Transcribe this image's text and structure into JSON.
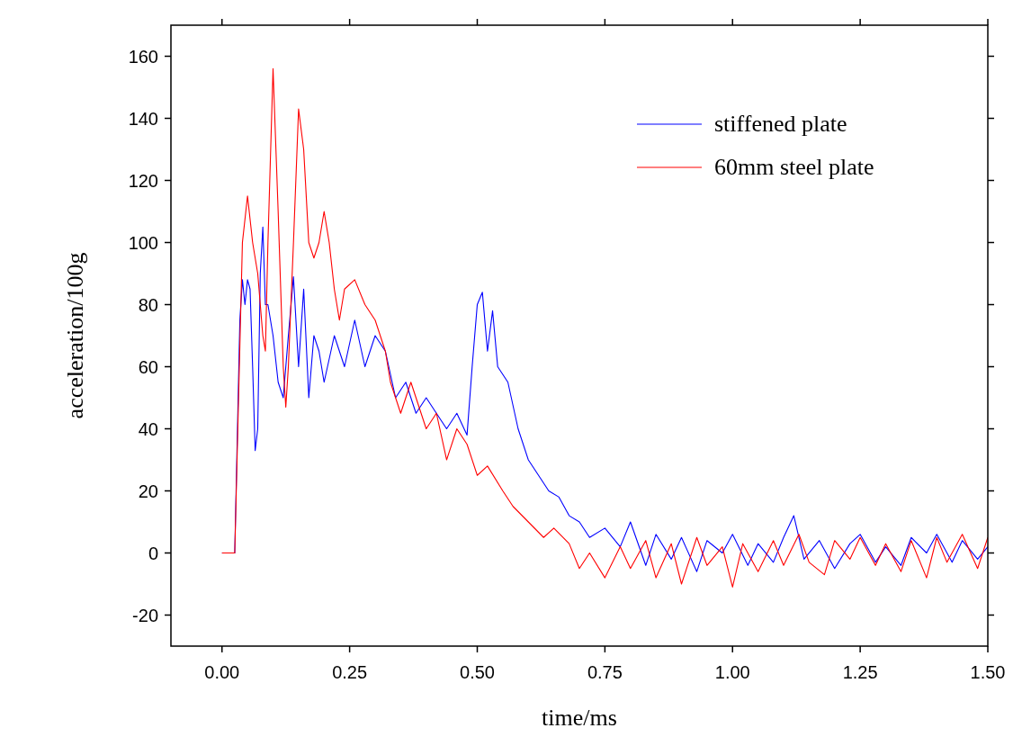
{
  "chart_data": {
    "type": "line",
    "xlabel": "time/ms",
    "ylabel": "acceleration/100g",
    "xlim": [
      -0.1,
      1.5
    ],
    "ylim": [
      -30,
      170
    ],
    "xticks": [
      {
        "value": 0,
        "label": "0.00"
      },
      {
        "value": 0.25,
        "label": "0.25"
      },
      {
        "value": 0.5,
        "label": "0.50"
      },
      {
        "value": 0.75,
        "label": "0.75"
      },
      {
        "value": 1,
        "label": "1.00"
      },
      {
        "value": 1.25,
        "label": "1.25"
      },
      {
        "value": 1.5,
        "label": "1.50"
      }
    ],
    "yticks": [
      -20,
      0,
      20,
      40,
      60,
      80,
      100,
      120,
      140,
      160
    ],
    "grid": false,
    "legend": "top right",
    "line_style": "solid",
    "marker": "none",
    "series": [
      {
        "name": "stiffened plate",
        "color": "#0000ff",
        "x": [
          0,
          0.025,
          0.035,
          0.04,
          0.045,
          0.05,
          0.055,
          0.06,
          0.065,
          0.07,
          0.075,
          0.08,
          0.085,
          0.09,
          0.1,
          0.11,
          0.12,
          0.13,
          0.14,
          0.15,
          0.16,
          0.17,
          0.18,
          0.19,
          0.2,
          0.22,
          0.24,
          0.26,
          0.28,
          0.3,
          0.32,
          0.34,
          0.36,
          0.38,
          0.4,
          0.42,
          0.44,
          0.46,
          0.48,
          0.49,
          0.5,
          0.51,
          0.52,
          0.53,
          0.54,
          0.56,
          0.58,
          0.6,
          0.62,
          0.64,
          0.66,
          0.68,
          0.7,
          0.72,
          0.75,
          0.78,
          0.8,
          0.83,
          0.85,
          0.88,
          0.9,
          0.93,
          0.95,
          0.98,
          1.0,
          1.03,
          1.05,
          1.08,
          1.1,
          1.12,
          1.14,
          1.17,
          1.2,
          1.23,
          1.25,
          1.28,
          1.3,
          1.33,
          1.35,
          1.38,
          1.4,
          1.43,
          1.45,
          1.48,
          1.5
        ],
        "values": [
          0,
          0,
          75,
          88,
          80,
          88,
          85,
          60,
          33,
          40,
          90,
          105,
          80,
          80,
          70,
          55,
          50,
          70,
          89,
          60,
          85,
          50,
          70,
          65,
          55,
          70,
          60,
          75,
          60,
          70,
          65,
          50,
          55,
          45,
          50,
          45,
          40,
          45,
          38,
          60,
          80,
          84,
          65,
          78,
          60,
          55,
          40,
          30,
          25,
          20,
          18,
          12,
          10,
          5,
          8,
          2,
          10,
          -4,
          6,
          -2,
          5,
          -6,
          4,
          0,
          6,
          -4,
          3,
          -3,
          5,
          12,
          -2,
          4,
          -5,
          3,
          6,
          -3,
          2,
          -4,
          5,
          0,
          6,
          -3,
          4,
          -2,
          2
        ]
      },
      {
        "name": "60mm steel plate",
        "color": "#ff0000",
        "x": [
          0,
          0.025,
          0.04,
          0.05,
          0.06,
          0.07,
          0.08,
          0.085,
          0.09,
          0.1,
          0.11,
          0.12,
          0.125,
          0.13,
          0.14,
          0.15,
          0.16,
          0.17,
          0.18,
          0.19,
          0.2,
          0.21,
          0.22,
          0.23,
          0.24,
          0.26,
          0.28,
          0.3,
          0.32,
          0.33,
          0.35,
          0.37,
          0.4,
          0.42,
          0.44,
          0.46,
          0.48,
          0.5,
          0.52,
          0.55,
          0.57,
          0.6,
          0.63,
          0.65,
          0.68,
          0.7,
          0.72,
          0.75,
          0.78,
          0.8,
          0.83,
          0.85,
          0.88,
          0.9,
          0.93,
          0.95,
          0.98,
          1.0,
          1.02,
          1.05,
          1.08,
          1.1,
          1.13,
          1.15,
          1.18,
          1.2,
          1.23,
          1.25,
          1.28,
          1.3,
          1.33,
          1.35,
          1.38,
          1.4,
          1.42,
          1.45,
          1.48,
          1.5
        ],
        "values": [
          0,
          0,
          100,
          115,
          100,
          90,
          70,
          65,
          100,
          156,
          110,
          60,
          47,
          60,
          100,
          143,
          130,
          100,
          95,
          100,
          110,
          100,
          85,
          75,
          85,
          88,
          80,
          75,
          65,
          55,
          45,
          55,
          40,
          45,
          30,
          40,
          35,
          25,
          28,
          20,
          15,
          10,
          5,
          8,
          3,
          -5,
          0,
          -8,
          2,
          -5,
          4,
          -8,
          3,
          -10,
          5,
          -4,
          2,
          -11,
          3,
          -6,
          4,
          -4,
          6,
          -3,
          -7,
          4,
          -2,
          5,
          -4,
          3,
          -6,
          4,
          -8,
          5,
          -3,
          6,
          -5,
          5
        ]
      }
    ]
  }
}
